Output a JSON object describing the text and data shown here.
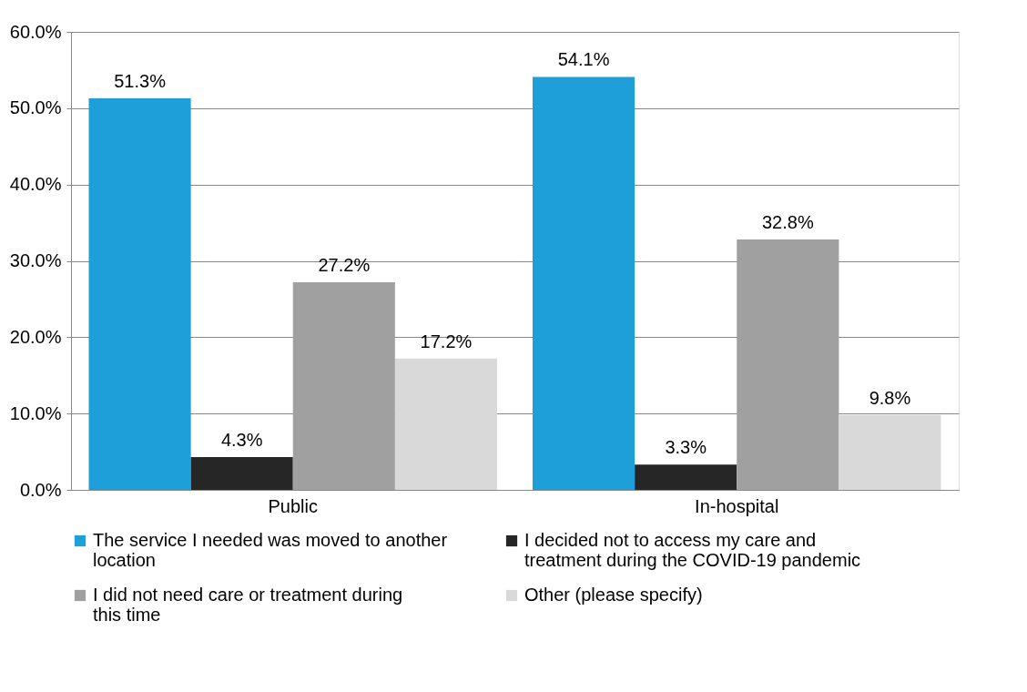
{
  "chart_data": {
    "type": "bar",
    "categories": [
      "Public",
      "In-hospital"
    ],
    "series": [
      {
        "name": "The service I needed was moved to another location",
        "color": "#1f9fd9",
        "values": [
          51.3,
          54.1
        ],
        "value_labels": [
          "51.3%",
          "54.1%"
        ]
      },
      {
        "name": "I decided not to access my care and treatment during the COVID-19 pandemic",
        "color": "#262626",
        "values": [
          4.3,
          3.3
        ],
        "value_labels": [
          "4.3%",
          "3.3%"
        ]
      },
      {
        "name": "I did not need care or treatment during this time",
        "color": "#a0a0a0",
        "values": [
          27.2,
          32.8
        ],
        "value_labels": [
          "27.2%",
          "32.8%"
        ]
      },
      {
        "name": "Other (please specify)",
        "color": "#d9d9d9",
        "values": [
          17.2,
          9.8
        ],
        "value_labels": [
          "17.2%",
          "9.8%"
        ]
      }
    ],
    "ylim": [
      0,
      60
    ],
    "yticks": [
      {
        "value": 0,
        "label": "0.0%"
      },
      {
        "value": 10,
        "label": "10.0%"
      },
      {
        "value": 20,
        "label": "20.0%"
      },
      {
        "value": 30,
        "label": "30.0%"
      },
      {
        "value": 40,
        "label": "40.0%"
      },
      {
        "value": 50,
        "label": "50.0%"
      },
      {
        "value": 60,
        "label": "60.0%"
      }
    ],
    "grid": "y",
    "legend": "bottom"
  }
}
